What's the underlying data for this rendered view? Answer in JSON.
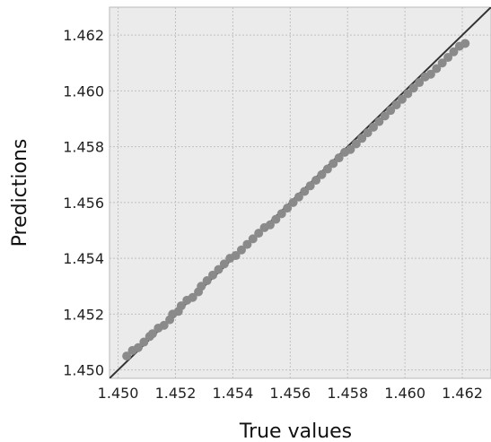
{
  "chart_data": {
    "type": "scatter",
    "title": "",
    "xlabel": "True values",
    "ylabel": "Predictions",
    "xlim": [
      1.4497,
      1.463
    ],
    "ylim": [
      1.4497,
      1.463
    ],
    "xticks": [
      1.45,
      1.452,
      1.454,
      1.456,
      1.458,
      1.46,
      1.462
    ],
    "yticks": [
      1.45,
      1.452,
      1.454,
      1.456,
      1.458,
      1.46,
      1.462
    ],
    "xtick_labels": [
      "1.450",
      "1.452",
      "1.454",
      "1.456",
      "1.458",
      "1.460",
      "1.462"
    ],
    "ytick_labels": [
      "1.450",
      "1.452",
      "1.454",
      "1.456",
      "1.458",
      "1.460",
      "1.462"
    ],
    "grid": true,
    "reference_line": {
      "slope": 1,
      "intercept": 0,
      "color": "#333333"
    },
    "colors": {
      "background": "#ebebeb",
      "grid": "#c0c0c0",
      "points": "#8a8a8a",
      "frame": "#b8b8b8"
    },
    "x": [
      1.4503,
      1.4505,
      1.4507,
      1.4509,
      1.4511,
      1.4512,
      1.4514,
      1.4516,
      1.4518,
      1.4519,
      1.4521,
      1.4522,
      1.4524,
      1.4526,
      1.4528,
      1.4529,
      1.4531,
      1.4533,
      1.4535,
      1.4537,
      1.4539,
      1.4541,
      1.4543,
      1.4545,
      1.4547,
      1.4549,
      1.4551,
      1.4553,
      1.4555,
      1.4557,
      1.4559,
      1.4561,
      1.4563,
      1.4565,
      1.4567,
      1.4569,
      1.4571,
      1.4573,
      1.4575,
      1.4577,
      1.4579,
      1.4581,
      1.4583,
      1.4585,
      1.4587,
      1.4589,
      1.4591,
      1.4593,
      1.4595,
      1.4597,
      1.4599,
      1.4601,
      1.4603,
      1.4605,
      1.4607,
      1.4609,
      1.4611,
      1.4613,
      1.4615,
      1.4617,
      1.4619,
      1.4621
    ],
    "y": [
      1.4505,
      1.4507,
      1.4508,
      1.451,
      1.4512,
      1.4513,
      1.4515,
      1.4516,
      1.4518,
      1.452,
      1.4521,
      1.4523,
      1.4525,
      1.4526,
      1.4528,
      1.453,
      1.4532,
      1.4534,
      1.4536,
      1.4538,
      1.454,
      1.4541,
      1.4543,
      1.4545,
      1.4547,
      1.4549,
      1.4551,
      1.4552,
      1.4554,
      1.4556,
      1.4558,
      1.456,
      1.4562,
      1.4564,
      1.4566,
      1.4568,
      1.457,
      1.4572,
      1.4574,
      1.4576,
      1.4578,
      1.4579,
      1.4581,
      1.4583,
      1.4585,
      1.4587,
      1.4589,
      1.4591,
      1.4593,
      1.4595,
      1.4597,
      1.4599,
      1.4601,
      1.4603,
      1.4605,
      1.4606,
      1.4608,
      1.461,
      1.4612,
      1.4614,
      1.4616,
      1.4617
    ]
  }
}
